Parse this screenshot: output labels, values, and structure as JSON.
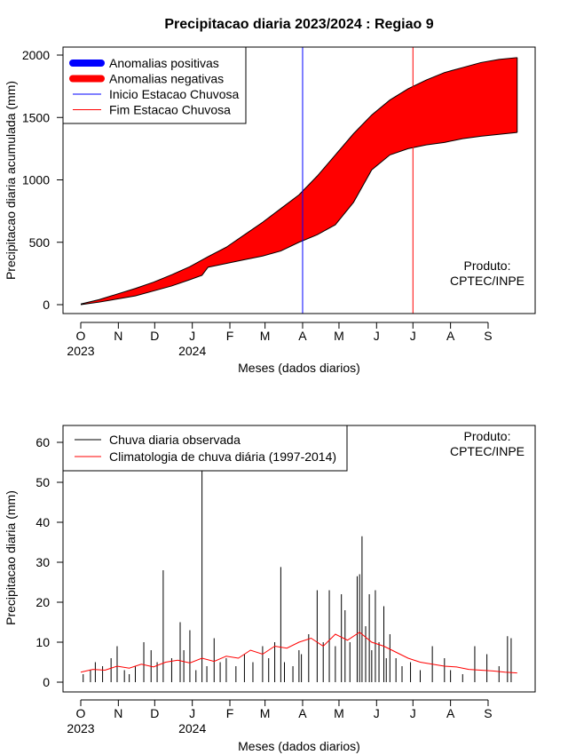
{
  "chart_data": [
    {
      "type": "area",
      "title": "Precipitacao diaria 2023/2024 : Regiao 9",
      "xlabel": "Meses (dados diarios)",
      "ylabel": "Precipitacao diaria acumulada (mm)",
      "ylim": [
        0,
        2000
      ],
      "yticks": [
        "0",
        "500",
        "1000",
        "1500",
        "2000"
      ],
      "month_ticks": [
        "O",
        "N",
        "D",
        "J",
        "F",
        "M",
        "A",
        "M",
        "J",
        "J",
        "A",
        "S"
      ],
      "year_labels": [
        "2023",
        "2024"
      ],
      "legend": [
        {
          "label": "Anomalias positivas",
          "color": "#0000ff"
        },
        {
          "label": "Anomalias negativas",
          "color": "#ff0000"
        },
        {
          "label": "Inicio Estacao Chuvosa",
          "color": "#0000ff"
        },
        {
          "label": "Fim Estacao Chuvosa",
          "color": "#ff0000"
        }
      ],
      "legend_position": "top-left",
      "product_label": [
        "Produto:",
        "CPTEC/INPE"
      ],
      "rainy_season_start_month": "A",
      "rainy_season_end_month": "J",
      "series": [
        {
          "name": "Climatologia acumulada",
          "x_days": [
            0,
            15,
            30,
            45,
            60,
            75,
            90,
            105,
            120,
            135,
            150,
            165,
            180,
            195,
            210,
            225,
            240,
            255,
            270,
            285,
            300,
            315,
            330,
            345,
            360
          ],
          "values": [
            5,
            40,
            85,
            130,
            180,
            240,
            305,
            385,
            460,
            560,
            660,
            770,
            880,
            1030,
            1200,
            1370,
            1520,
            1640,
            1730,
            1800,
            1860,
            1900,
            1940,
            1965,
            1980
          ]
        },
        {
          "name": "Chuva observada acumulada",
          "x_days": [
            0,
            15,
            30,
            45,
            60,
            75,
            90,
            100,
            105,
            120,
            135,
            150,
            165,
            180,
            195,
            210,
            225,
            240,
            255,
            270,
            285,
            300,
            315,
            330,
            345,
            360
          ],
          "values": [
            0,
            20,
            45,
            70,
            110,
            150,
            200,
            235,
            300,
            330,
            360,
            390,
            430,
            500,
            560,
            640,
            820,
            1080,
            1200,
            1250,
            1280,
            1300,
            1330,
            1350,
            1365,
            1380
          ]
        }
      ]
    },
    {
      "type": "bar",
      "xlabel": "Meses (dados diarios)",
      "ylabel": "Precipitacao diaria (mm)",
      "ylim": [
        0,
        60
      ],
      "yticks": [
        "0",
        "10",
        "20",
        "30",
        "40",
        "50",
        "60"
      ],
      "month_ticks": [
        "O",
        "N",
        "D",
        "J",
        "F",
        "M",
        "A",
        "M",
        "J",
        "J",
        "A",
        "S"
      ],
      "year_labels": [
        "2023",
        "2024"
      ],
      "legend": [
        {
          "label": "Chuva diaria observada",
          "color": "#000000"
        },
        {
          "label": "Climatologia de chuva diária (1997-2014)",
          "color": "#ff0000"
        }
      ],
      "legend_position": "top-left",
      "product_label": [
        "Produto:",
        "CPTEC/INPE"
      ],
      "series": [
        {
          "name": "Chuva diaria observada",
          "x_days": [
            2,
            8,
            12,
            18,
            25,
            30,
            36,
            40,
            45,
            52,
            58,
            63,
            68,
            75,
            82,
            85,
            90,
            95,
            100,
            104,
            110,
            115,
            120,
            128,
            135,
            142,
            150,
            155,
            160,
            165,
            168,
            175,
            180,
            182,
            188,
            195,
            200,
            205,
            210,
            215,
            218,
            222,
            228,
            230,
            232,
            235,
            238,
            240,
            243,
            246,
            250,
            252,
            255,
            260,
            265,
            272,
            280,
            290,
            300,
            305,
            315,
            325,
            335,
            345,
            352,
            355
          ],
          "values": [
            2,
            3,
            5,
            4,
            6,
            9,
            3,
            2,
            4,
            10,
            8,
            5,
            28,
            6,
            15,
            8,
            13,
            3,
            53,
            4,
            11,
            5,
            6,
            4,
            7,
            5,
            9,
            6,
            10,
            28.8,
            5,
            4,
            8,
            7,
            12,
            23,
            10,
            23,
            9,
            22,
            18,
            10,
            26.5,
            27,
            36.5,
            14,
            22,
            8,
            23,
            10,
            19,
            6,
            12,
            6,
            4,
            5,
            3,
            9,
            6,
            3,
            2,
            9,
            7,
            4,
            11.5,
            11
          ]
        },
        {
          "name": "Climatologia de chuva diária (1997-2014)",
          "x_days": [
            0,
            10,
            20,
            30,
            40,
            50,
            60,
            70,
            80,
            90,
            100,
            110,
            120,
            130,
            140,
            150,
            160,
            170,
            180,
            190,
            200,
            210,
            220,
            230,
            240,
            250,
            260,
            270,
            280,
            290,
            300,
            310,
            320,
            330,
            340,
            350,
            360
          ],
          "values": [
            2.5,
            3.2,
            3,
            4,
            3.5,
            4.5,
            3.8,
            5,
            5.5,
            4.8,
            6,
            5.2,
            6.5,
            6,
            8,
            7,
            9,
            8.5,
            10,
            11,
            9,
            12,
            10.5,
            12.5,
            10,
            9,
            7.5,
            6,
            5,
            4.5,
            4,
            3.8,
            3.2,
            3,
            2.8,
            2.5,
            2.3
          ]
        }
      ]
    }
  ],
  "colors": {
    "anomaly_fill": "#ff0000",
    "rainy_start_line": "#0000ff",
    "rainy_end_line": "#ff0000",
    "bars": "#000000",
    "climatology_line": "#ff0000"
  }
}
